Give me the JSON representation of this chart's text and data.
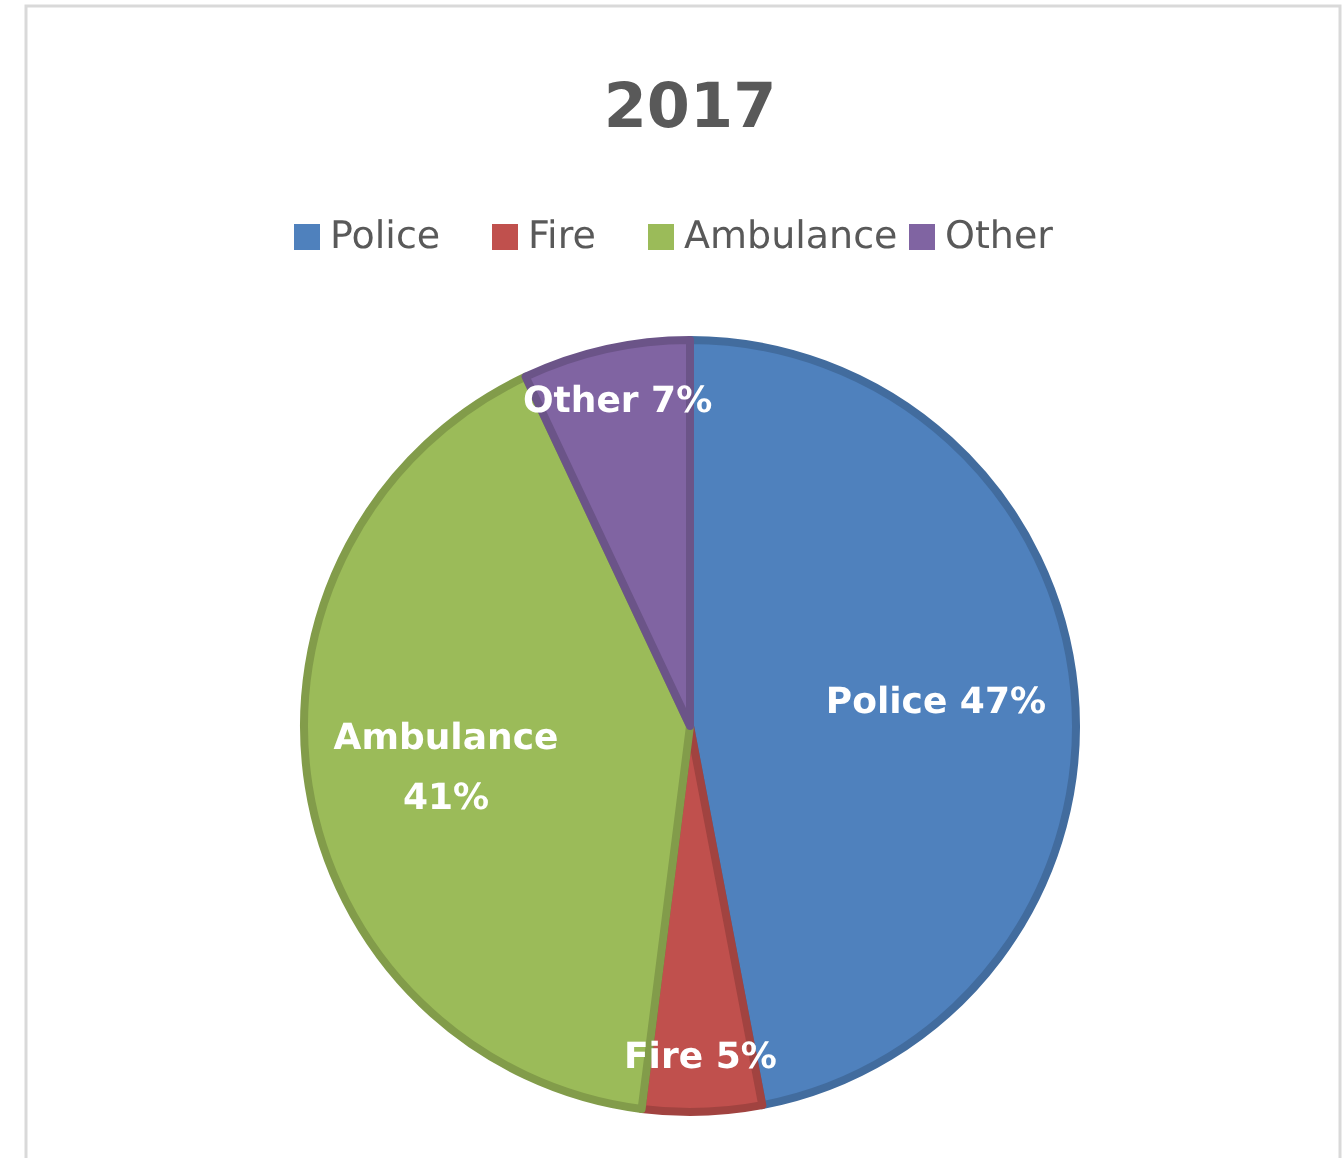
{
  "chart_data": {
    "type": "pie",
    "title": "2017",
    "categories": [
      "Police",
      "Fire",
      "Ambulance",
      "Other"
    ],
    "values": [
      47,
      5,
      41,
      7
    ],
    "colors": [
      "#4f81bd",
      "#c0504d",
      "#9bbb59",
      "#8064a2"
    ],
    "value_labels": [
      "Police 47%",
      "Fire 5%",
      "Ambulance 41%",
      "Other 7%"
    ],
    "legend": "top"
  }
}
